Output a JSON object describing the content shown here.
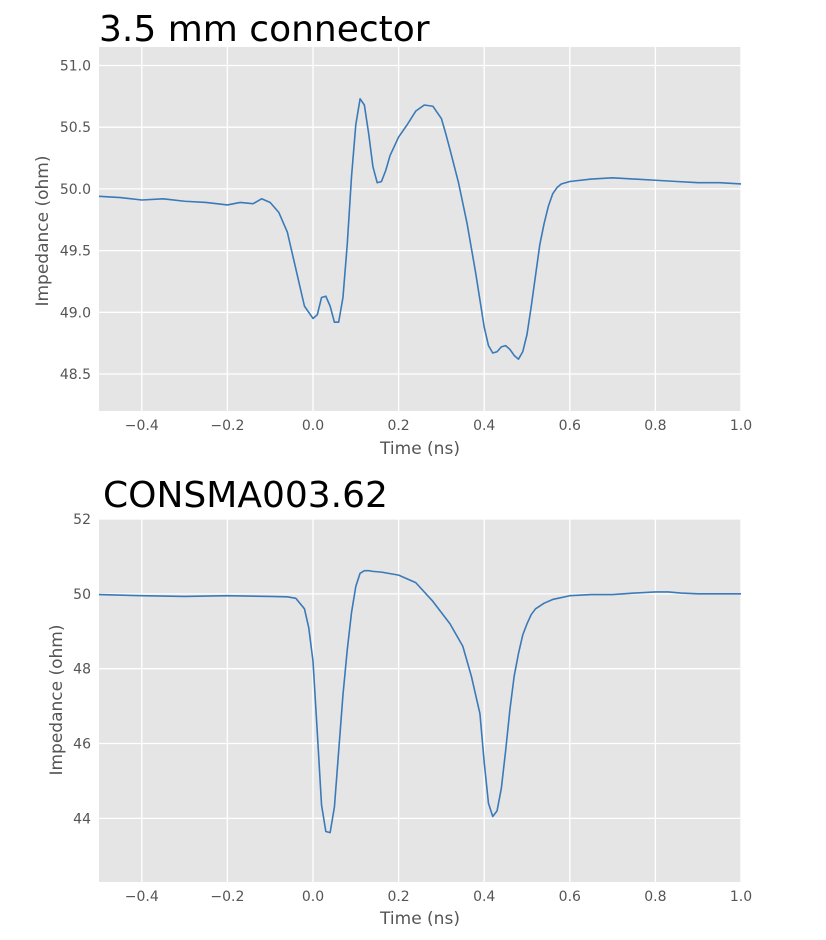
{
  "chart_data": [
    {
      "type": "line",
      "title": "3.5 mm connector",
      "xlabel": "Time (ns)",
      "ylabel": "Impedance (ohm)",
      "xlim": [
        -0.5,
        1.0
      ],
      "ylim": [
        48.2,
        51.15
      ],
      "xticks": [
        -0.4,
        -0.2,
        0.0,
        0.2,
        0.4,
        0.6,
        0.8,
        1.0
      ],
      "xtick_labels": [
        "−0.4",
        "−0.2",
        "0.0",
        "0.2",
        "0.4",
        "0.6",
        "0.8",
        "1.0"
      ],
      "yticks": [
        48.5,
        49.0,
        49.5,
        50.0,
        50.5,
        51.0
      ],
      "ytick_labels": [
        "48.5",
        "49.0",
        "49.5",
        "50.0",
        "50.5",
        "51.0"
      ],
      "grid": true,
      "color": "#3a7ab8",
      "x": [
        -0.5,
        -0.45,
        -0.4,
        -0.35,
        -0.3,
        -0.25,
        -0.2,
        -0.17,
        -0.14,
        -0.12,
        -0.1,
        -0.08,
        -0.06,
        -0.04,
        -0.02,
        0.0,
        0.01,
        0.02,
        0.03,
        0.04,
        0.05,
        0.06,
        0.07,
        0.08,
        0.09,
        0.1,
        0.11,
        0.12,
        0.13,
        0.14,
        0.15,
        0.16,
        0.17,
        0.18,
        0.2,
        0.22,
        0.24,
        0.26,
        0.28,
        0.3,
        0.31,
        0.32,
        0.34,
        0.36,
        0.38,
        0.4,
        0.41,
        0.42,
        0.43,
        0.44,
        0.45,
        0.46,
        0.47,
        0.48,
        0.49,
        0.5,
        0.51,
        0.52,
        0.53,
        0.54,
        0.55,
        0.56,
        0.57,
        0.58,
        0.6,
        0.65,
        0.7,
        0.75,
        0.8,
        0.85,
        0.9,
        0.95,
        1.0
      ],
      "series": [
        {
          "values": [
            49.94,
            49.93,
            49.91,
            49.92,
            49.9,
            49.89,
            49.87,
            49.89,
            49.88,
            49.92,
            49.89,
            49.81,
            49.65,
            49.35,
            49.05,
            48.95,
            48.98,
            49.12,
            49.13,
            49.05,
            48.92,
            48.92,
            49.12,
            49.55,
            50.1,
            50.52,
            50.73,
            50.68,
            50.45,
            50.18,
            50.05,
            50.06,
            50.15,
            50.27,
            50.42,
            50.52,
            50.63,
            50.68,
            50.67,
            50.57,
            50.45,
            50.32,
            50.05,
            49.72,
            49.32,
            48.88,
            48.73,
            48.67,
            48.68,
            48.72,
            48.73,
            48.7,
            48.65,
            48.62,
            48.68,
            48.82,
            49.05,
            49.3,
            49.55,
            49.72,
            49.86,
            49.96,
            50.01,
            50.04,
            50.06,
            50.08,
            50.09,
            50.08,
            50.07,
            50.06,
            50.05,
            50.05,
            50.04
          ]
        }
      ]
    },
    {
      "type": "line",
      "title": "CONSMA003.62",
      "xlabel": "Time (ns)",
      "ylabel": "Impedance (ohm)",
      "xlim": [
        -0.5,
        1.0
      ],
      "ylim": [
        42.3,
        52.0
      ],
      "xticks": [
        -0.4,
        -0.2,
        0.0,
        0.2,
        0.4,
        0.6,
        0.8,
        1.0
      ],
      "xtick_labels": [
        "−0.4",
        "−0.2",
        "0.0",
        "0.2",
        "0.4",
        "0.6",
        "0.8",
        "1.0"
      ],
      "yticks": [
        44,
        46,
        48,
        50,
        52
      ],
      "ytick_labels": [
        "44",
        "46",
        "48",
        "50",
        "52"
      ],
      "grid": true,
      "color": "#3a7ab8",
      "x": [
        -0.5,
        -0.4,
        -0.3,
        -0.2,
        -0.1,
        -0.06,
        -0.04,
        -0.02,
        -0.01,
        0.0,
        0.01,
        0.02,
        0.03,
        0.04,
        0.05,
        0.06,
        0.07,
        0.08,
        0.09,
        0.1,
        0.11,
        0.12,
        0.13,
        0.14,
        0.16,
        0.2,
        0.24,
        0.28,
        0.32,
        0.35,
        0.37,
        0.39,
        0.4,
        0.41,
        0.42,
        0.43,
        0.44,
        0.45,
        0.46,
        0.47,
        0.48,
        0.49,
        0.5,
        0.51,
        0.52,
        0.54,
        0.56,
        0.6,
        0.65,
        0.7,
        0.75,
        0.8,
        0.83,
        0.86,
        0.9,
        0.95,
        1.0
      ],
      "series": [
        {
          "values": [
            49.98,
            49.95,
            49.93,
            49.95,
            49.93,
            49.92,
            49.88,
            49.6,
            49.1,
            48.2,
            46.3,
            44.35,
            43.65,
            43.62,
            44.3,
            45.8,
            47.3,
            48.5,
            49.5,
            50.2,
            50.55,
            50.62,
            50.62,
            50.6,
            50.58,
            50.5,
            50.3,
            49.8,
            49.2,
            48.6,
            47.8,
            46.8,
            45.5,
            44.4,
            44.05,
            44.2,
            44.8,
            45.8,
            46.9,
            47.8,
            48.4,
            48.9,
            49.2,
            49.45,
            49.6,
            49.75,
            49.85,
            49.95,
            49.98,
            49.98,
            50.02,
            50.05,
            50.05,
            50.02,
            50.0,
            50.0,
            50.0
          ]
        }
      ]
    }
  ]
}
